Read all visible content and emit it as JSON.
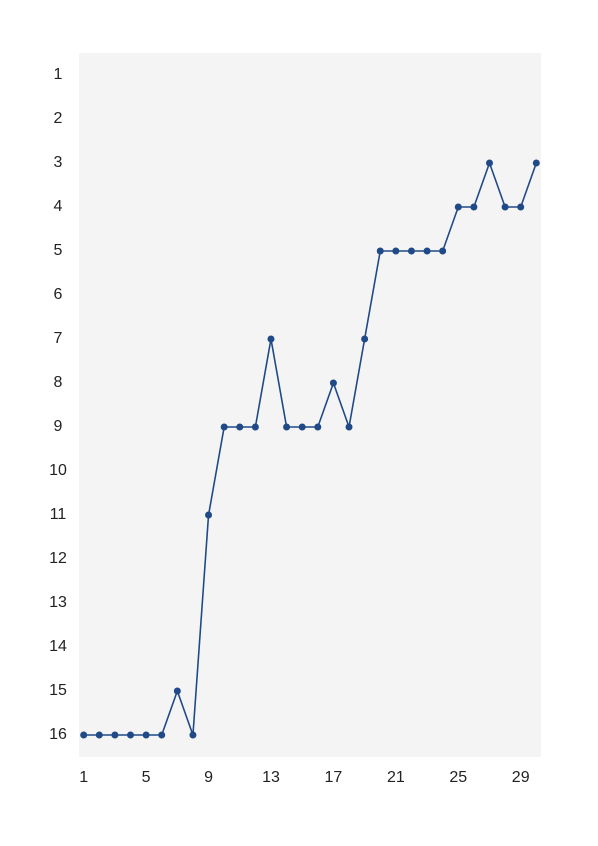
{
  "chart_data": {
    "type": "line",
    "x": [
      1,
      2,
      3,
      4,
      5,
      6,
      7,
      8,
      9,
      10,
      11,
      12,
      13,
      14,
      15,
      16,
      17,
      18,
      19,
      20,
      21,
      22,
      23,
      24,
      25,
      26,
      27,
      28,
      29,
      30
    ],
    "series": [
      {
        "color": "#1f4a87",
        "values": [
          16,
          16,
          16,
          16,
          16,
          16,
          15,
          16,
          11,
          9,
          9,
          9,
          7,
          9,
          9,
          9,
          8,
          9,
          7,
          5,
          5,
          5,
          5,
          5,
          4,
          4,
          3,
          4,
          4,
          3
        ]
      }
    ],
    "xlim": [
      0.7,
      30.3
    ],
    "xticks": [
      1,
      5,
      9,
      13,
      17,
      21,
      25,
      29
    ],
    "ylim": [
      0.5,
      16.5
    ],
    "yticks": [
      1,
      2,
      3,
      4,
      5,
      6,
      7,
      8,
      9,
      10,
      11,
      12,
      13,
      14,
      15,
      16
    ],
    "y_inverted": true,
    "grid": false,
    "background": "#f4f4f5"
  }
}
